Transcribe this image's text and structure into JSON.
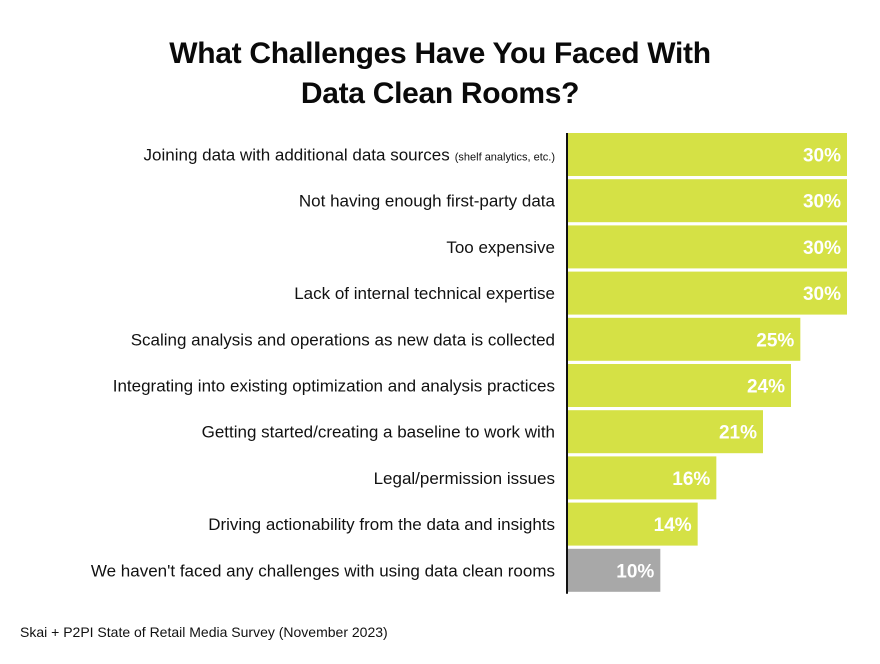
{
  "title_lines": [
    "What Challenges Have You Faced With",
    "Data Clean Rooms?"
  ],
  "footnote": "Skai + P2PI State of Retail Media Survey (November 2023)",
  "colors": {
    "bar": "#d5e145",
    "bar_muted": "#a8a8a8",
    "value_text": "#ffffff",
    "axis": "#111111"
  },
  "chart_data": {
    "type": "bar",
    "orientation": "horizontal",
    "title": "What Challenges Have You Faced With Data Clean Rooms?",
    "value_unit": "%",
    "xlim": [
      0,
      30
    ],
    "grid": false,
    "categories": [
      {
        "label": "Joining data with additional data sources",
        "note": "(shelf analytics, etc.)"
      },
      {
        "label": "Not having enough first-party data",
        "note": ""
      },
      {
        "label": "Too expensive",
        "note": ""
      },
      {
        "label": "Lack of internal technical expertise",
        "note": ""
      },
      {
        "label": "Scaling analysis and operations as new data is collected",
        "note": ""
      },
      {
        "label": "Integrating into existing optimization and analysis practices",
        "note": ""
      },
      {
        "label": "Getting started/creating a baseline to work with",
        "note": ""
      },
      {
        "label": "Legal/permission issues",
        "note": ""
      },
      {
        "label": "Driving actionability from the data and insights",
        "note": ""
      },
      {
        "label": "We haven't faced any challenges with using data clean rooms",
        "note": ""
      }
    ],
    "values": [
      30,
      30,
      30,
      30,
      25,
      24,
      21,
      16,
      14,
      10
    ],
    "value_labels": [
      "30%",
      "30%",
      "30%",
      "30%",
      "25%",
      "24%",
      "21%",
      "16%",
      "14%",
      "10%"
    ],
    "muted": [
      false,
      false,
      false,
      false,
      false,
      false,
      false,
      false,
      false,
      true
    ]
  }
}
